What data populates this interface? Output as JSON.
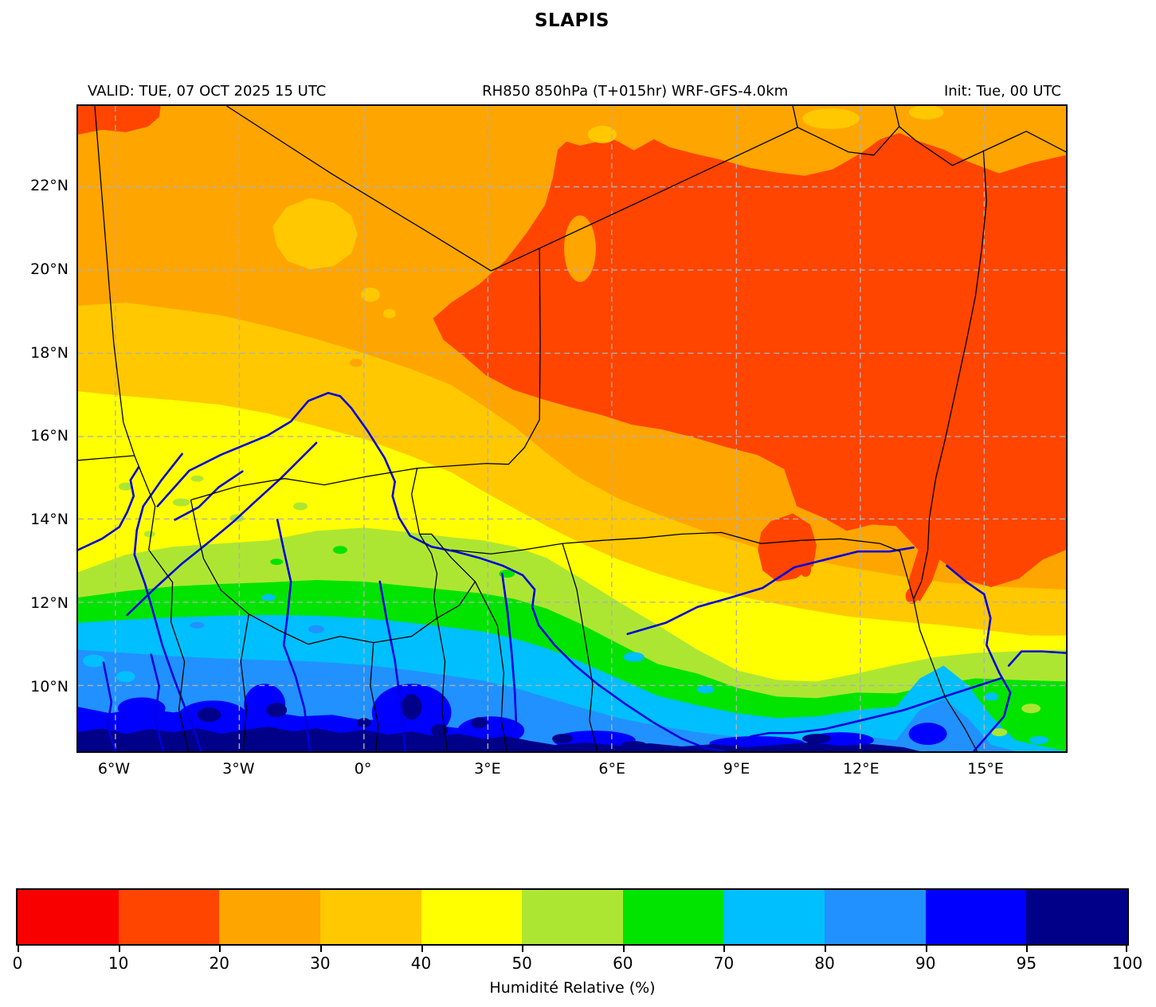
{
  "title": "SLAPIS",
  "header": {
    "valid": "VALID: TUE, 07 OCT 2025 15 UTC",
    "product": "RH850 850hPa (T+015hr) WRF-GFS-4.0km",
    "init": "Init: Tue, 00 UTC"
  },
  "map": {
    "lat_tick_labels": [
      "22°N",
      "20°N",
      "18°N",
      "16°N",
      "14°N",
      "12°N",
      "10°N"
    ],
    "lon_tick_labels": [
      "6°W",
      "3°W",
      "0°",
      "3°E",
      "6°E",
      "9°E",
      "12°E",
      "15°E"
    ],
    "grid_color": "#b0b0b0",
    "border_line_color": "#000000",
    "river_color": "#0000dd",
    "background_color": "#ffffff"
  },
  "colorbar": {
    "label": "Humidité Relative (%)",
    "tick_labels": [
      "0",
      "10",
      "20",
      "30",
      "40",
      "50",
      "60",
      "70",
      "80",
      "90",
      "95",
      "100"
    ],
    "segments": [
      {
        "from": 0,
        "to": 10,
        "color": "#f80000"
      },
      {
        "from": 10,
        "to": 20,
        "color": "#ff4500"
      },
      {
        "from": 20,
        "to": 30,
        "color": "#ffa500"
      },
      {
        "from": 30,
        "to": 40,
        "color": "#ffc800"
      },
      {
        "from": 40,
        "to": 50,
        "color": "#ffff00"
      },
      {
        "from": 50,
        "to": 60,
        "color": "#ade632"
      },
      {
        "from": 60,
        "to": 70,
        "color": "#00e400"
      },
      {
        "from": 70,
        "to": 80,
        "color": "#00bfff"
      },
      {
        "from": 80,
        "to": 90,
        "color": "#2191ff"
      },
      {
        "from": 90,
        "to": 95,
        "color": "#0000ff"
      },
      {
        "from": 95,
        "to": 100,
        "color": "#000089"
      }
    ]
  },
  "chart_data": {
    "type": "heatmap",
    "title": "SLAPIS",
    "variable": "RH850 850hPa (T+015hr) WRF-GFS-4.0km",
    "units": "%",
    "valid_time": "TUE, 07 OCT 2025 15 UTC",
    "init_time": "Tue, 00 UTC",
    "colorbar_label": "Humidité Relative (%)",
    "legend_position": "bottom",
    "grid": true,
    "lon_range_deg": [
      -6.9,
      16.9
    ],
    "lat_range_deg": [
      8.4,
      23.9
    ],
    "lon_ticks_deg": [
      -6,
      -3,
      0,
      3,
      6,
      9,
      12,
      15
    ],
    "lat_ticks_deg": [
      22,
      20,
      18,
      16,
      14,
      12,
      10
    ],
    "levels_percent": [
      0,
      10,
      20,
      30,
      40,
      50,
      60,
      70,
      80,
      90,
      95,
      100
    ],
    "palette": [
      "#f80000",
      "#ff4500",
      "#ffa500",
      "#ffc800",
      "#ffff00",
      "#ade632",
      "#00e400",
      "#00bfff",
      "#2191ff",
      "#0000ff",
      "#000089"
    ],
    "sampled_rh_grid": {
      "lons_deg": [
        -6,
        -3,
        0,
        3,
        6,
        9,
        12,
        15
      ],
      "lats_deg": [
        23,
        21,
        19,
        17,
        15,
        13,
        11,
        9
      ],
      "values_percent": [
        [
          25,
          25,
          25,
          25,
          15,
          15,
          15,
          25
        ],
        [
          25,
          25,
          25,
          25,
          15,
          15,
          15,
          15
        ],
        [
          35,
          25,
          25,
          15,
          15,
          15,
          15,
          15
        ],
        [
          40,
          35,
          35,
          25,
          15,
          15,
          15,
          15
        ],
        [
          45,
          40,
          40,
          35,
          25,
          15,
          15,
          15
        ],
        [
          55,
          50,
          45,
          45,
          45,
          40,
          25,
          30
        ],
        [
          70,
          65,
          62,
          55,
          50,
          45,
          55,
          60
        ],
        [
          88,
          92,
          85,
          82,
          78,
          75,
          80,
          65
        ]
      ]
    }
  }
}
